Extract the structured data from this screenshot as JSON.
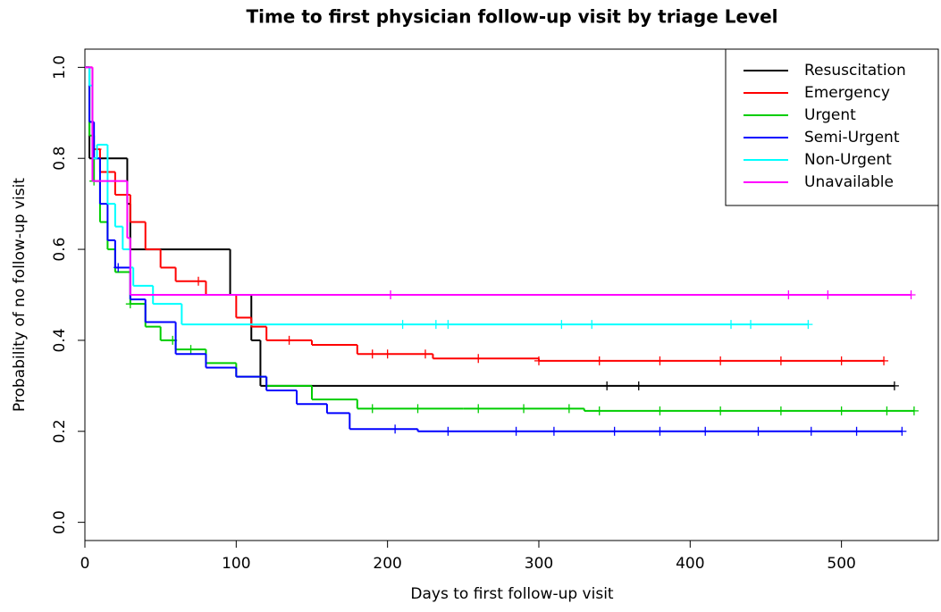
{
  "chart_data": {
    "type": "step",
    "title": "Time to first physician follow-up visit by triage Level",
    "x_label": "Days to first follow-up visit",
    "y_label": "Probability of no follow-up visit",
    "xlim": [
      0,
      564
    ],
    "xticks": [
      0,
      100,
      200,
      300,
      400,
      500
    ],
    "ylim": [
      -0.04,
      1.04
    ],
    "yticks": [
      {
        "value": 0,
        "label": "0.0"
      },
      0.2,
      0.4,
      0.6,
      0.8,
      {
        "value": 1,
        "label": "1.0"
      }
    ],
    "legend": "top-right",
    "series": [
      {
        "name": "Resuscitation",
        "color": "#000000",
        "x": [
          0,
          3,
          28,
          30,
          96,
          110,
          116,
          535
        ],
        "values": [
          1.0,
          0.8,
          0.7,
          0.6,
          0.5,
          0.4,
          0.3,
          0.3
        ],
        "censor_x": [
          345,
          366,
          535
        ]
      },
      {
        "name": "Emergency",
        "color": "#ff0000",
        "x": [
          0,
          5,
          10,
          20,
          30,
          40,
          50,
          60,
          80,
          100,
          110,
          120,
          150,
          180,
          230,
          300,
          528
        ],
        "values": [
          1.0,
          0.82,
          0.77,
          0.72,
          0.66,
          0.6,
          0.56,
          0.53,
          0.5,
          0.45,
          0.43,
          0.4,
          0.39,
          0.37,
          0.36,
          0.355,
          0.355
        ],
        "censor_x": [
          8,
          75,
          135,
          190,
          200,
          225,
          260,
          300,
          340,
          380,
          420,
          460,
          500,
          528
        ]
      },
      {
        "name": "Urgent",
        "color": "#00cd00",
        "x": [
          0,
          3,
          6,
          10,
          15,
          20,
          30,
          40,
          50,
          60,
          80,
          100,
          120,
          150,
          180,
          250,
          330,
          548
        ],
        "values": [
          1.0,
          0.85,
          0.75,
          0.66,
          0.6,
          0.55,
          0.48,
          0.43,
          0.4,
          0.38,
          0.35,
          0.32,
          0.3,
          0.27,
          0.25,
          0.25,
          0.245,
          0.245
        ],
        "censor_x": [
          6,
          30,
          58,
          70,
          190,
          220,
          260,
          290,
          320,
          340,
          380,
          420,
          460,
          500,
          530,
          548
        ]
      },
      {
        "name": "Semi-Urgent",
        "color": "#0000ff",
        "x": [
          0,
          3,
          6,
          10,
          15,
          20,
          30,
          40,
          60,
          80,
          100,
          120,
          140,
          160,
          175,
          220,
          540
        ],
        "values": [
          1.0,
          0.88,
          0.8,
          0.7,
          0.62,
          0.56,
          0.49,
          0.44,
          0.37,
          0.34,
          0.32,
          0.29,
          0.26,
          0.24,
          0.205,
          0.2,
          0.2
        ],
        "censor_x": [
          22,
          205,
          240,
          285,
          310,
          350,
          380,
          410,
          445,
          480,
          510,
          540
        ]
      },
      {
        "name": "Non-Urgent",
        "color": "#00ffff",
        "x": [
          0,
          3,
          5,
          8,
          15,
          20,
          25,
          30,
          32,
          45,
          64,
          478
        ],
        "values": [
          1.0,
          0.96,
          0.8,
          0.83,
          0.7,
          0.65,
          0.6,
          0.56,
          0.52,
          0.48,
          0.435,
          0.435
        ],
        "censor_x": [
          210,
          232,
          240,
          315,
          335,
          427,
          440,
          478
        ]
      },
      {
        "name": "Unavailable",
        "color": "#ff00ff",
        "x": [
          0,
          5,
          28,
          30,
          546
        ],
        "values": [
          1.0,
          0.75,
          0.625,
          0.5,
          0.5
        ],
        "censor_x": [
          202,
          465,
          491,
          546
        ]
      }
    ]
  }
}
